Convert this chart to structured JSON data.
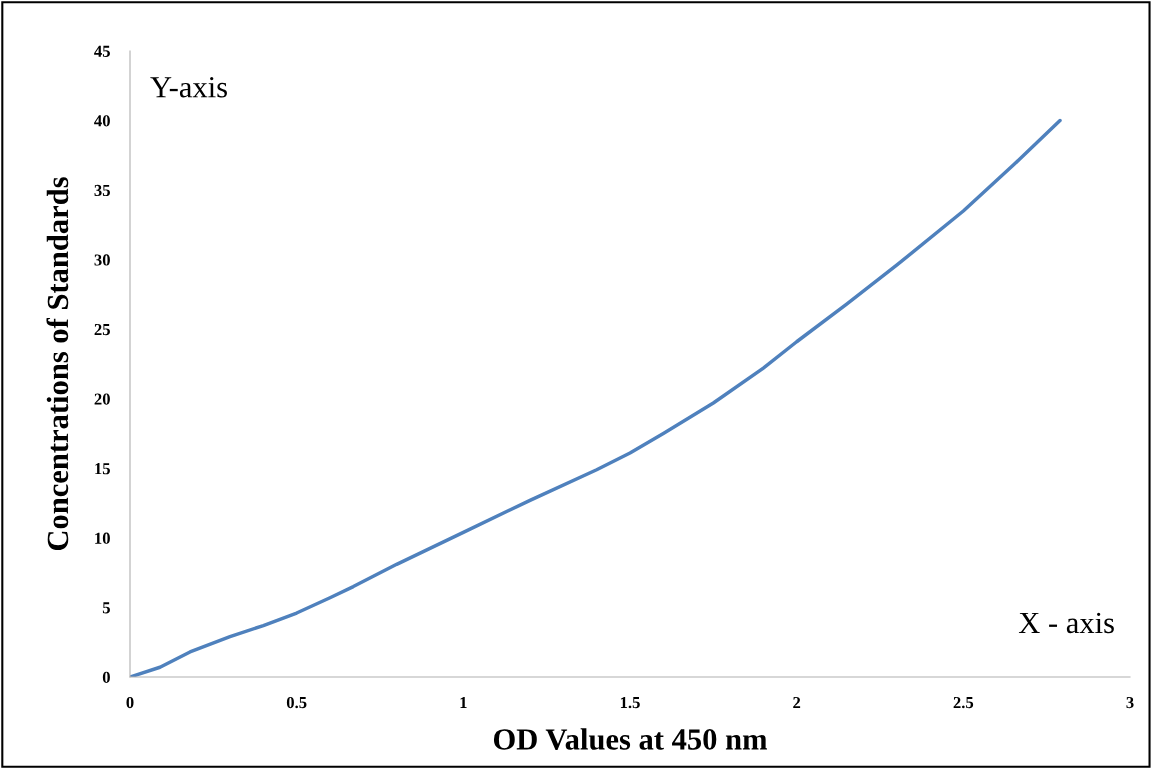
{
  "chart_data": {
    "type": "line",
    "xlabel": "OD Values at 450 nm",
    "ylabel": "Concentrations of Standards",
    "annotations": [
      "Y-axis",
      "X - axis"
    ],
    "series": [
      {
        "color": "#4f81bd",
        "x": [
          0,
          0.09,
          0.18,
          0.3,
          0.4,
          0.5,
          0.6,
          0.67,
          0.8,
          1.0,
          1.2,
          1.4,
          1.5,
          1.6,
          1.75,
          1.9,
          2.0,
          2.15,
          2.3,
          2.5,
          2.65,
          2.79
        ],
        "values": [
          0,
          0.7,
          1.8,
          2.9,
          3.7,
          4.6,
          5.7,
          6.5,
          8.1,
          10.4,
          12.7,
          14.9,
          16.1,
          17.5,
          19.7,
          22.2,
          24.1,
          26.8,
          29.6,
          33.5,
          36.8,
          40
        ]
      }
    ],
    "xlim": [
      0,
      3
    ],
    "xticks": [
      0,
      0.5,
      1,
      1.5,
      2,
      2.5,
      3
    ],
    "ylim": [
      0,
      45
    ],
    "yticks": [
      0,
      5,
      10,
      15,
      20,
      25,
      30,
      35,
      40,
      45
    ],
    "grid": false,
    "legend": false,
    "marker": "none",
    "line_style": "solid"
  }
}
